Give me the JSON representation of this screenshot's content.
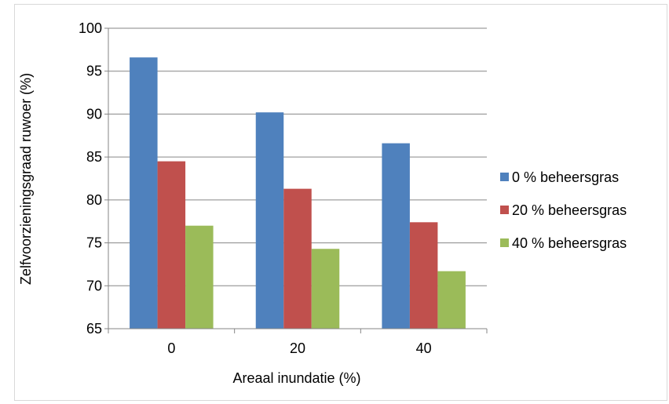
{
  "chart_data": {
    "type": "bar",
    "categories": [
      "0",
      "20",
      "40"
    ],
    "series": [
      {
        "name": "0 % beheersgras",
        "color": "#4f81bd",
        "values": [
          96.6,
          90.2,
          86.6
        ]
      },
      {
        "name": "20 % beheersgras",
        "color": "#c0504d",
        "values": [
          84.5,
          81.3,
          77.4
        ]
      },
      {
        "name": "40 % beheersgras",
        "color": "#9bbb59",
        "values": [
          77.0,
          74.3,
          71.7
        ]
      }
    ],
    "xlabel": "Areaal inundatie (%)",
    "ylabel": "Zelfvoorzieningsgraad  ruwoer (%)",
    "ylim": [
      65,
      100
    ],
    "yticks": [
      "65",
      "70",
      "75",
      "80",
      "85",
      "90",
      "95",
      "100"
    ],
    "grid": true,
    "legend_position": "right"
  }
}
